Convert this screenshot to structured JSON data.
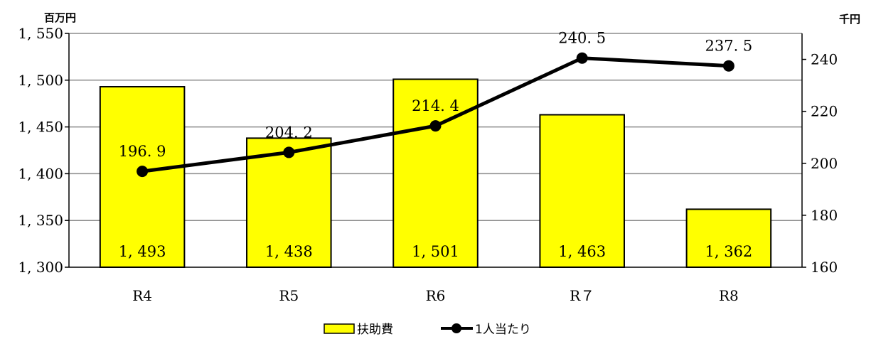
{
  "chart_data": {
    "type": "bar",
    "categories": [
      "R4",
      "R5",
      "R6",
      "R７",
      "R8"
    ],
    "y_left_unit": "百万円",
    "y_right_unit": "千円",
    "ylim_left": [
      1300,
      1550
    ],
    "yticks_left": [
      "1, 300",
      "1, 350",
      "1, 400",
      "1, 450",
      "1, 500",
      "1, 550"
    ],
    "ylim_right": [
      160,
      250
    ],
    "yticks_right": [
      "160",
      "180",
      "200",
      "220",
      "240"
    ],
    "grid": true,
    "legend_position": "bottom",
    "series": [
      {
        "name": "扶助費",
        "kind": "bar",
        "axis": "left",
        "color": "#FFFF00",
        "values": [
          1493,
          1438,
          1501,
          1463,
          1362
        ],
        "labels": [
          "1, 493",
          "1, 438",
          "1, 501",
          "1, 463",
          "1, 362"
        ]
      },
      {
        "name": "1人当たり",
        "kind": "line",
        "axis": "right",
        "color": "#000000",
        "values": [
          196.9,
          204.2,
          214.4,
          240.5,
          237.5
        ],
        "labels": [
          "196. 9",
          "204. 2",
          "214. 4",
          "240. 5",
          "237. 5"
        ]
      }
    ]
  }
}
